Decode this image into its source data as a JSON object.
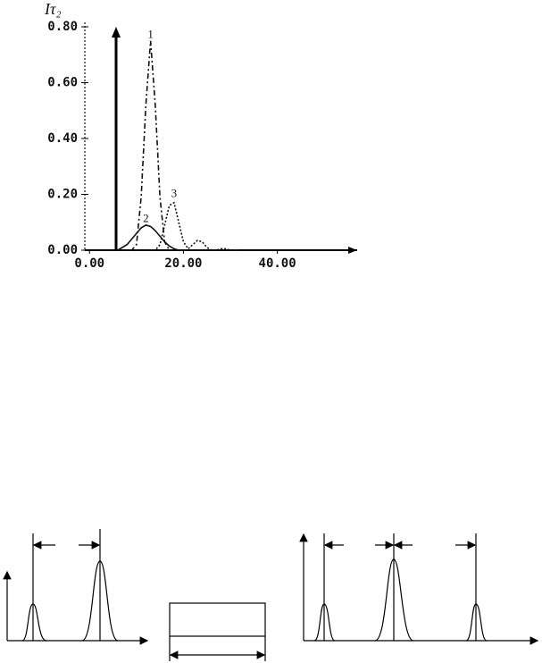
{
  "chart_data": {
    "type": "line",
    "y_label": "Iτ₂",
    "x": [
      6,
      7,
      8,
      9,
      10,
      11,
      12,
      13,
      14,
      15,
      16,
      17,
      18,
      19,
      20,
      21,
      22,
      23,
      24,
      25,
      26,
      27,
      28,
      29,
      30,
      31,
      32
    ],
    "series": [
      {
        "color": "#111111",
        "dash": "6,3,2,3",
        "values": [
          0,
          0,
          0,
          0,
          0.02,
          0.19,
          0.52,
          0.75,
          0.52,
          0.19,
          0.03,
          0,
          0,
          0,
          0,
          0,
          0,
          0,
          0,
          0,
          0,
          0,
          0,
          0,
          0,
          0,
          0
        ]
      },
      {
        "color": "#111111",
        "dash": "none",
        "values": [
          0,
          0.01,
          0.02,
          0.04,
          0.06,
          0.08,
          0.09,
          0.085,
          0.07,
          0.05,
          0.03,
          0.015,
          0.005,
          0,
          0,
          0,
          0,
          0,
          0,
          0,
          0,
          0,
          0,
          0,
          0,
          0,
          0
        ]
      },
      {
        "color": "#111111",
        "dash": "2,2",
        "values": [
          0,
          0,
          0,
          0,
          0,
          0,
          0,
          0,
          0,
          0.02,
          0.09,
          0.16,
          0.17,
          0.1,
          0.03,
          0.005,
          0.02,
          0.035,
          0.03,
          0.01,
          0,
          0,
          0.005,
          0.005,
          0,
          0,
          0
        ]
      }
    ],
    "annotations": [
      {
        "text": "1",
        "x": 13,
        "y": 0.77
      },
      {
        "text": "2",
        "x": 12,
        "y": 0.11
      },
      {
        "text": "3",
        "x": 18,
        "y": 0.2
      }
    ],
    "xlim": [
      -1,
      57
    ],
    "ylim": [
      0,
      0.8
    ],
    "xticks": [
      {
        "value": 0,
        "label": "0.00"
      },
      {
        "value": 20,
        "label": "20.00"
      },
      {
        "value": 40,
        "label": "40.00"
      }
    ],
    "yticks": [
      {
        "value": 0,
        "label": "0.00"
      },
      {
        "value": 0.2,
        "label": "0.20"
      },
      {
        "value": 0.4,
        "label": "0.40"
      },
      {
        "value": 0.6,
        "label": "0.60"
      },
      {
        "value": 0.8,
        "label": "0.80"
      }
    ]
  }
}
